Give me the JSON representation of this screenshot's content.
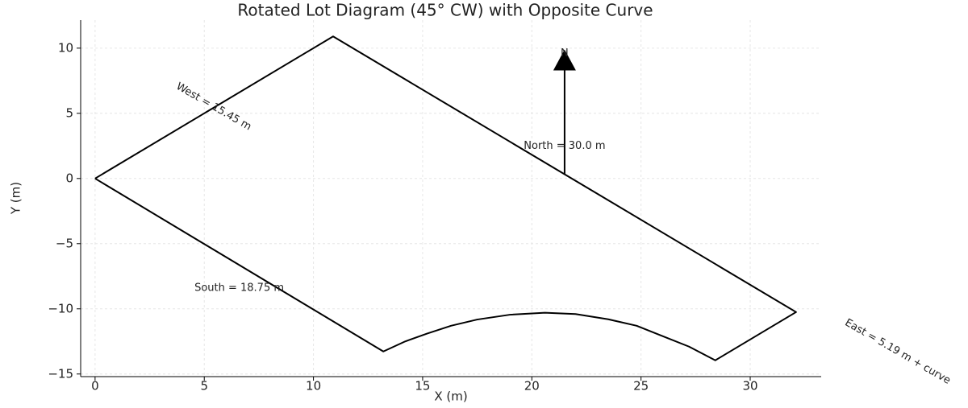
{
  "chart_data": {
    "type": "line",
    "title": "Rotated Lot Diagram (45° CW) with Opposite Curve",
    "xlabel": "X (m)",
    "ylabel": "Y (m)",
    "xlim": [
      -0.66,
      33.25
    ],
    "ylim": [
      -15.2,
      12.15
    ],
    "xticks": [
      0,
      5,
      10,
      15,
      20,
      25,
      30
    ],
    "yticks": [
      {
        "value": -15,
        "label": "−15"
      },
      {
        "value": -10,
        "label": "−10"
      },
      {
        "value": -5,
        "label": "−5"
      },
      0,
      5,
      10
    ],
    "grid": true,
    "series": [
      {
        "color": "#000000",
        "x": [
          0,
          10.9,
          32.1,
          28.4,
          27.2,
          26,
          24.8,
          23.5,
          22,
          20.6,
          19,
          17.5,
          16.3,
          15.2,
          14.2,
          13.2,
          0
        ],
        "values": [
          0,
          10.9,
          -10.25,
          -13.95,
          -12.9,
          -12.1,
          -11.3,
          -10.8,
          -10.4,
          -10.3,
          -10.45,
          -10.82,
          -11.3,
          -11.9,
          -12.5,
          -13.27,
          0
        ]
      }
    ],
    "arrow": {
      "x": [
        21.5,
        21.5
      ],
      "y": [
        0.3,
        9.9
      ],
      "color": "#000000"
    },
    "annotations": [
      {
        "text": "N",
        "x": 21.5,
        "y": 9.6,
        "rotation": 0
      },
      {
        "text": "West = 15.45 m",
        "x": 5.43,
        "y": 5.5,
        "rotation": 30
      },
      {
        "text": "North = 30.0 m",
        "x": 21.5,
        "y": 2.5,
        "rotation": 0
      },
      {
        "text": "South = 18.75 m",
        "x": 6.6,
        "y": -8.4,
        "rotation": 0
      },
      {
        "text": "East = 5.19 m + curve",
        "x": 36.75,
        "y": -13.3,
        "rotation": 30
      }
    ]
  }
}
